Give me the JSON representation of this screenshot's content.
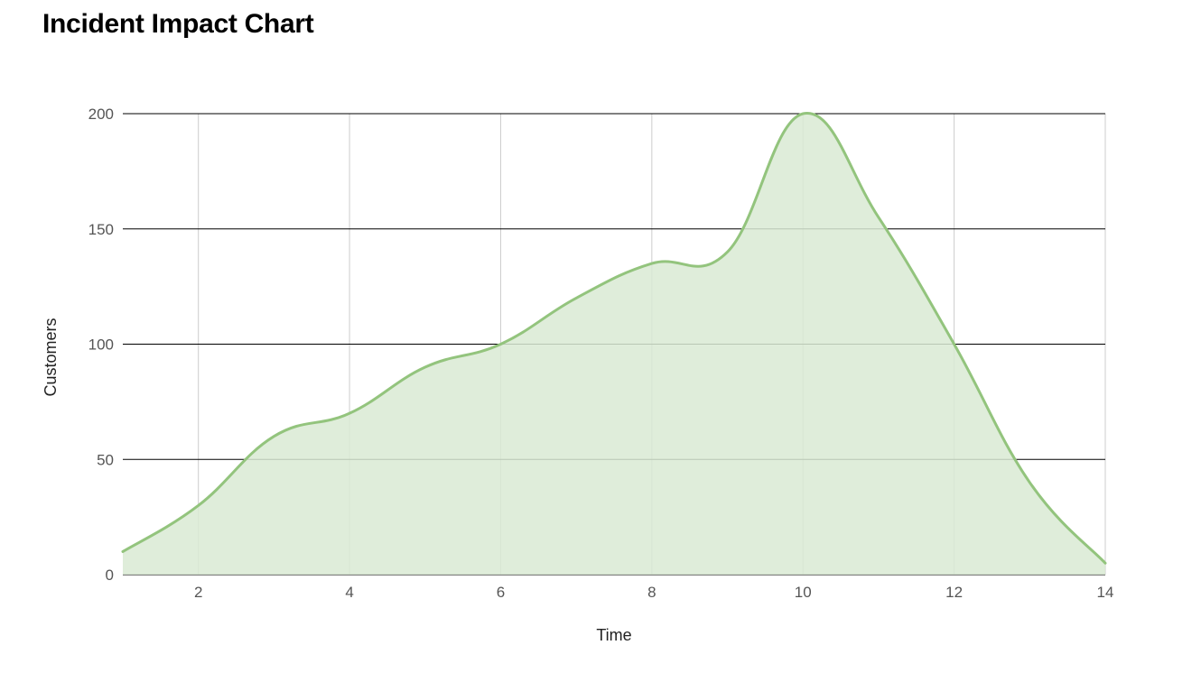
{
  "chart_data": {
    "type": "area",
    "title": "Incident Impact Chart",
    "xlabel": "Time",
    "ylabel": "Customers",
    "xlim": [
      1,
      14
    ],
    "ylim": [
      0,
      200
    ],
    "x_ticks": [
      "2",
      "4",
      "6",
      "8",
      "10",
      "12",
      "14"
    ],
    "y_ticks": [
      "0",
      "50",
      "100",
      "150",
      "200"
    ],
    "x_tick_values": [
      2,
      4,
      6,
      8,
      10,
      12,
      14
    ],
    "y_tick_values": [
      0,
      50,
      100,
      150,
      200
    ],
    "x": [
      1,
      2,
      3,
      4,
      5,
      6,
      7,
      8,
      9,
      10,
      11,
      12,
      13,
      14
    ],
    "series": [
      {
        "values": [
          10,
          30,
          60,
          70,
          90,
          100,
          120,
          135,
          140,
          200,
          155,
          100,
          40,
          5
        ]
      }
    ],
    "colors": {
      "line": "#93c47d",
      "fill": "#d9ead3",
      "major_grid": "#000000",
      "minor_grid": "#cccccc"
    },
    "grid": true,
    "legend": "none"
  }
}
